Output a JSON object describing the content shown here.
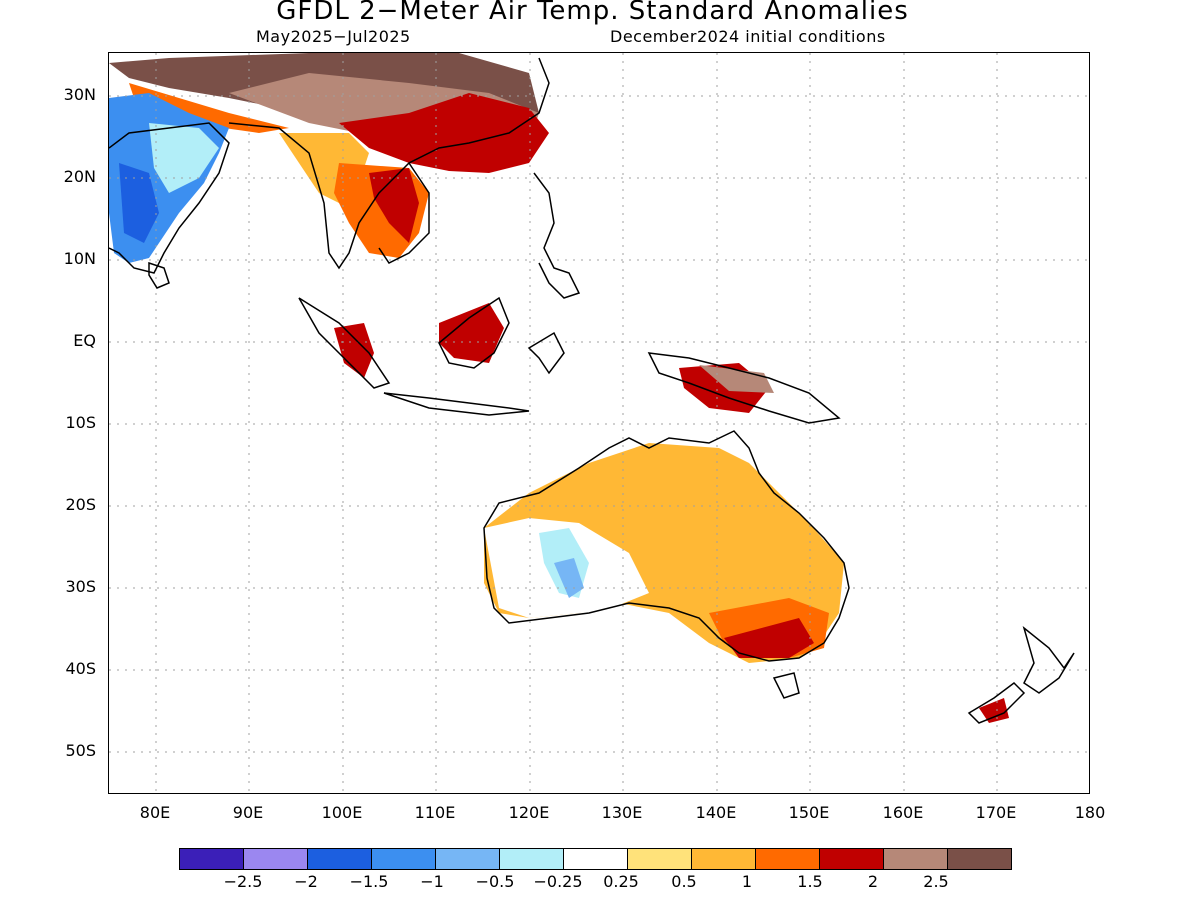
{
  "header": {
    "title": "GFDL 2−Meter Air Temp. Standard Anomalies",
    "period": "May2025−Jul2025",
    "init": "December2024 initial conditions"
  },
  "axes": {
    "lat_labels": [
      "30N",
      "20N",
      "10N",
      "EQ",
      "10S",
      "20S",
      "30S",
      "40S",
      "50S"
    ],
    "lon_labels": [
      "80E",
      "90E",
      "100E",
      "110E",
      "120E",
      "130E",
      "140E",
      "150E",
      "160E",
      "170E",
      "180"
    ]
  },
  "colorbar": {
    "colors": [
      "#3b1fb8",
      "#9b87f0",
      "#1c5fe0",
      "#3c8ff0",
      "#76b6f5",
      "#b2eef8",
      "#ffffff",
      "#ffe27a",
      "#ffb835",
      "#ff6a00",
      "#c00000",
      "#b68878",
      "#7a5048"
    ],
    "labels": [
      "−2.5",
      "−2",
      "−1.5",
      "−1",
      "−0.5",
      "−0.25",
      "0.25",
      "0.5",
      "1",
      "1.5",
      "2",
      "2.5"
    ]
  },
  "legend_colors": {
    "land_outline": "#000000",
    "gridline": "#a0a0a0"
  }
}
